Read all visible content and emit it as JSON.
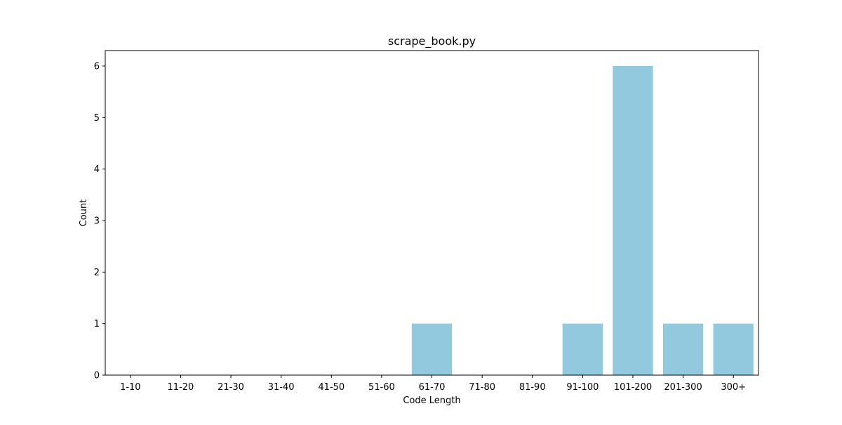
{
  "chart_data": {
    "type": "bar",
    "title": "scrape_book.py",
    "xlabel": "Code Length",
    "ylabel": "Count",
    "categories": [
      "1-10",
      "11-20",
      "21-30",
      "31-40",
      "41-50",
      "51-60",
      "61-70",
      "71-80",
      "81-90",
      "91-100",
      "101-200",
      "201-300",
      "300+"
    ],
    "values": [
      0,
      0,
      0,
      0,
      0,
      0,
      1,
      0,
      0,
      1,
      6,
      1,
      1
    ],
    "ylim": [
      0,
      6.3
    ],
    "yticks": [
      0,
      1,
      2,
      3,
      4,
      5,
      6
    ],
    "grid": false,
    "legend": "none",
    "bar_color": "#92c9df"
  }
}
